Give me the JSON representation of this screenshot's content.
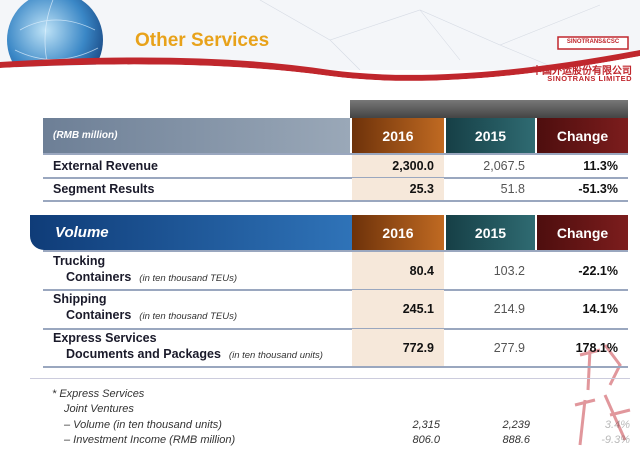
{
  "header": {
    "title": "Other Services",
    "logo_mark": "SINOTRANS&CSC",
    "company_cn": "中国外运股份有限公司",
    "company_en": "SINOTRANS LIMITED"
  },
  "table1": {
    "header": [
      "(RMB million)",
      "2016",
      "2015",
      "Change"
    ],
    "rows": [
      [
        "External Revenue",
        "2,300.0",
        "2,067.5",
        "11.3%"
      ],
      [
        "Segment Results",
        "25.3",
        "51.8",
        "-51.3%"
      ]
    ]
  },
  "table2": {
    "header": [
      "Volume",
      "2016",
      "2015",
      "Change"
    ],
    "rows": [
      {
        "category": "Trucking",
        "item": "Containers",
        "unit": "(in ten thousand TEUs)",
        "values": [
          "80.4",
          "103.2",
          "-22.1%"
        ]
      },
      {
        "category": "Shipping",
        "item": "Containers",
        "unit": "(in ten thousand TEUs)",
        "values": [
          "245.1",
          "214.9",
          "14.1%"
        ]
      },
      {
        "category": "Express Services",
        "item": "Documents and Packages",
        "unit": "(in ten thousand units)",
        "values": [
          "772.9",
          "277.9",
          "178.1%"
        ]
      }
    ]
  },
  "footnote": {
    "title": "* Express Services",
    "subtitle": "Joint Ventures",
    "rows": [
      {
        "label": "–  Volume (in ten thousand units)",
        "values": [
          "2,315",
          "2,239",
          "3.4%"
        ]
      },
      {
        "label": "–  Investment Income (RMB million)",
        "values": [
          "806.0",
          "888.6",
          "-9.3%"
        ]
      }
    ]
  }
}
